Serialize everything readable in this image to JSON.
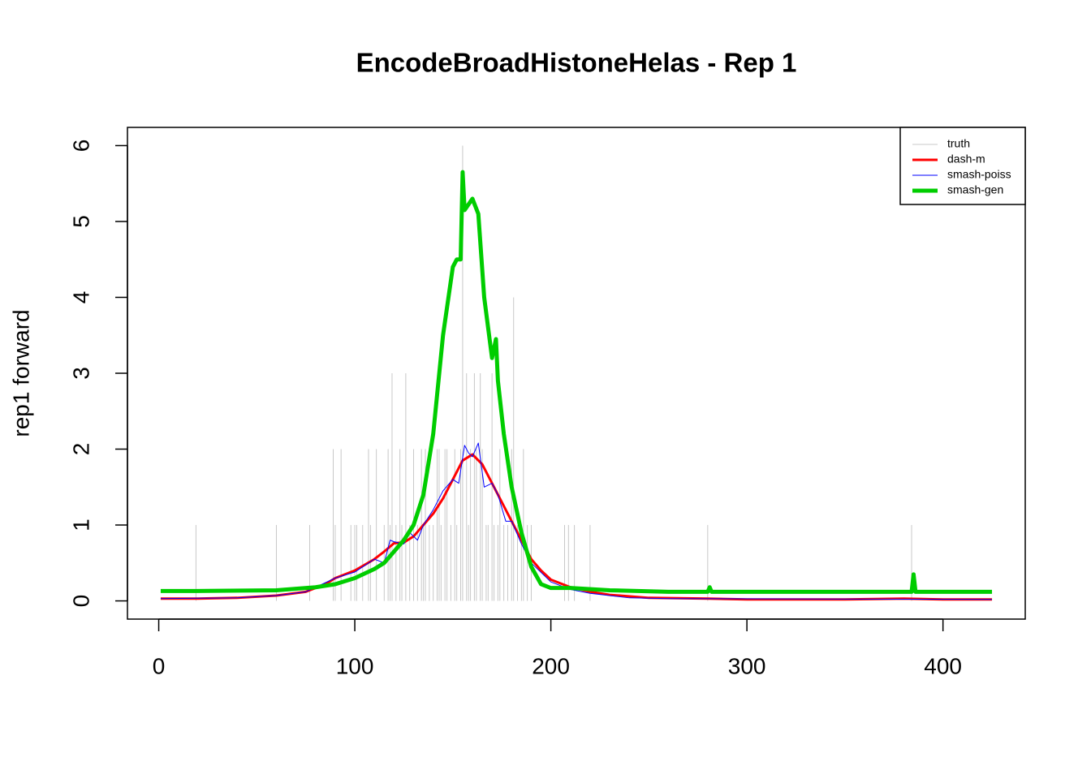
{
  "chart_data": {
    "type": "line",
    "title": "EncodeBroadHistoneHelas - Rep 1",
    "y_label": "rep1 forward",
    "xlim": [
      -15.96,
      441.96
    ],
    "xticks": [
      0,
      100,
      200,
      300,
      400
    ],
    "ylim": [
      -0.24,
      6.24
    ],
    "yticks": [
      0,
      1,
      2,
      3,
      4,
      5,
      6
    ],
    "legend": "topright",
    "series": [
      {
        "name": "truth",
        "color": "#c8c8c8",
        "style": "spikes",
        "line_width": 1,
        "x": [
          19,
          60,
          77,
          89,
          90,
          93,
          98,
          100,
          101,
          104,
          107,
          108,
          111,
          115,
          117,
          118,
          119,
          121,
          123,
          124,
          126,
          128,
          130,
          132,
          134,
          135,
          136,
          138,
          140,
          142,
          143,
          144,
          146,
          147,
          149,
          151,
          152,
          154,
          155,
          157,
          158,
          159,
          161,
          162,
          164,
          165,
          167,
          168,
          170,
          171,
          173,
          174,
          176,
          178,
          180,
          181,
          183,
          185,
          186,
          188,
          190,
          207,
          209,
          212,
          220,
          280,
          384
        ],
        "values": [
          1,
          1,
          1,
          2,
          1,
          2,
          1,
          1,
          1,
          1,
          2,
          1,
          2,
          1,
          2,
          1,
          3,
          1,
          2,
          1,
          3,
          1,
          2,
          1,
          2,
          1,
          2,
          1,
          1,
          2,
          2,
          1,
          2,
          2,
          1,
          2,
          1,
          2,
          6,
          3,
          1,
          2,
          3,
          2,
          3,
          2,
          1,
          1,
          3,
          1,
          1,
          2,
          1,
          1,
          2,
          4,
          1,
          1,
          2,
          1,
          1,
          1,
          1,
          1,
          1,
          1,
          1
        ]
      },
      {
        "name": "dash-m",
        "color": "#ff0000",
        "style": "line",
        "line_width": 3,
        "x": [
          1,
          20,
          40,
          60,
          75,
          85,
          90,
          100,
          110,
          115,
          120,
          125,
          130,
          135,
          140,
          145,
          150,
          155,
          160,
          165,
          170,
          175,
          180,
          185,
          190,
          195,
          200,
          210,
          220,
          230,
          250,
          280,
          300,
          350,
          380,
          400,
          425
        ],
        "values": [
          0.03,
          0.03,
          0.04,
          0.07,
          0.12,
          0.22,
          0.3,
          0.4,
          0.55,
          0.65,
          0.76,
          0.77,
          0.85,
          1.0,
          1.15,
          1.35,
          1.6,
          1.85,
          1.93,
          1.8,
          1.55,
          1.3,
          1.05,
          0.8,
          0.55,
          0.4,
          0.28,
          0.18,
          0.12,
          0.08,
          0.04,
          0.03,
          0.02,
          0.02,
          0.03,
          0.02,
          0.02
        ]
      },
      {
        "name": "smash-poiss",
        "color": "#0000ff",
        "style": "line",
        "line_width": 1,
        "x": [
          1,
          40,
          60,
          75,
          90,
          100,
          110,
          115,
          118,
          120,
          125,
          128,
          132,
          135,
          140,
          145,
          150,
          153,
          156,
          158,
          160,
          163,
          166,
          170,
          173,
          177,
          180,
          185,
          190,
          200,
          210,
          220,
          240,
          260,
          425
        ],
        "values": [
          0.03,
          0.04,
          0.07,
          0.12,
          0.3,
          0.38,
          0.55,
          0.5,
          0.8,
          0.78,
          0.75,
          0.9,
          0.8,
          1.0,
          1.2,
          1.45,
          1.6,
          1.55,
          2.05,
          1.95,
          1.9,
          2.08,
          1.5,
          1.55,
          1.4,
          1.05,
          1.05,
          0.75,
          0.5,
          0.25,
          0.15,
          0.1,
          0.04,
          0.03,
          0.02
        ]
      },
      {
        "name": "smash-gen",
        "color": "#00cd00",
        "style": "line",
        "line_width": 5,
        "x": [
          1,
          19,
          60,
          80,
          90,
          100,
          110,
          115,
          120,
          125,
          130,
          135,
          140,
          145,
          150,
          152,
          154,
          155,
          156,
          160,
          163,
          166,
          170,
          172,
          173,
          176,
          180,
          185,
          190,
          195,
          200,
          210,
          230,
          260,
          280,
          281,
          282,
          384,
          385,
          386,
          425
        ],
        "values": [
          0.13,
          0.13,
          0.14,
          0.18,
          0.22,
          0.3,
          0.42,
          0.5,
          0.65,
          0.8,
          1.0,
          1.4,
          2.2,
          3.5,
          4.4,
          4.5,
          4.5,
          5.65,
          5.15,
          5.3,
          5.1,
          4.0,
          3.2,
          3.45,
          2.9,
          2.2,
          1.5,
          0.9,
          0.45,
          0.22,
          0.17,
          0.17,
          0.14,
          0.12,
          0.12,
          0.18,
          0.12,
          0.12,
          0.35,
          0.12,
          0.12
        ]
      }
    ]
  }
}
